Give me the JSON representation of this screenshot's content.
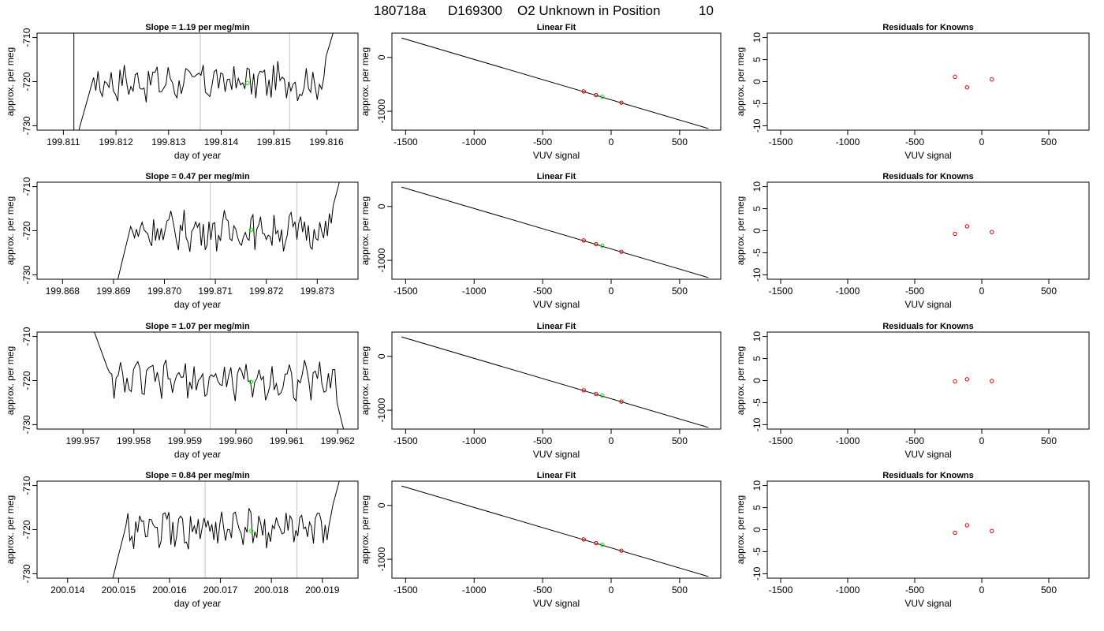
{
  "title": {
    "run_id": "180718a",
    "tank_id": "D169300",
    "description": "O2 Unknown in Position",
    "position": "10"
  },
  "colors": {
    "trace": "#000000",
    "marker_unknown": "#00e000",
    "marker_known": "#e00000",
    "vline": "#cccccc"
  },
  "chart_data": [
    {
      "type": "line",
      "panel": "trace",
      "row": 1,
      "title": "Slope =  1.19  per meg/min",
      "xlabel": "day of year",
      "ylabel": "approx. per meg",
      "xlim": [
        199.8105,
        199.8166
      ],
      "ylim": [
        -731,
        -709
      ],
      "x_ticks": [
        "199.811",
        "199.812",
        "199.813",
        "199.814",
        "199.815",
        "199.816"
      ],
      "y_ticks": [
        "-710",
        "-720",
        "-730"
      ],
      "trace_start": 199.8112,
      "trace_end": 199.8162,
      "vlines": [
        199.8136,
        199.8153
      ],
      "unknown_point": {
        "x": 199.8145,
        "y": -720.3
      }
    },
    {
      "type": "scatter",
      "panel": "fit",
      "row": 1,
      "title": "Linear Fit",
      "xlabel": "VUV signal",
      "ylabel": "approx. per meg",
      "xlim": [
        -1600,
        800
      ],
      "ylim": [
        -1350,
        450
      ],
      "x_ticks": [
        "-1500",
        "-1000",
        "-500",
        "0",
        "500"
      ],
      "y_ticks": [
        "0",
        "-1000"
      ],
      "fit_line": {
        "x": [
          -1530,
          710
        ],
        "y": [
          360,
          -1320
        ]
      },
      "knowns": [
        {
          "x": -200,
          "y": -630
        },
        {
          "x": -110,
          "y": -700
        },
        {
          "x": 75,
          "y": -840
        }
      ],
      "unknown_point": {
        "x": -65,
        "y": -730
      }
    },
    {
      "type": "scatter",
      "panel": "residuals",
      "row": 1,
      "title": "Residuals for Knowns",
      "xlabel": "VUV signal",
      "ylabel": "approx. per meg",
      "xlim": [
        -1600,
        800
      ],
      "ylim": [
        -11,
        11
      ],
      "x_ticks": [
        "-1500",
        "-1000",
        "-500",
        "0",
        "500"
      ],
      "y_ticks": [
        "10",
        "5",
        "0",
        "-5",
        "-10"
      ],
      "residuals": [
        {
          "x": -200,
          "y": 1.1
        },
        {
          "x": -110,
          "y": -1.3
        },
        {
          "x": 75,
          "y": 0.5
        }
      ]
    },
    {
      "type": "line",
      "panel": "trace",
      "row": 2,
      "title": "Slope =  0.47  per meg/min",
      "xlabel": "day of year",
      "ylabel": "approx. per meg",
      "xlim": [
        199.8675,
        199.8738
      ],
      "ylim": [
        -731,
        -709
      ],
      "x_ticks": [
        "199.868",
        "199.869",
        "199.870",
        "199.871",
        "199.872",
        "199.873"
      ],
      "y_ticks": [
        "-710",
        "-720",
        "-730"
      ],
      "trace_start": 199.869,
      "trace_end": 199.8735,
      "vlines": [
        199.8709,
        199.8726
      ],
      "unknown_point": {
        "x": 199.8717,
        "y": -719.8
      }
    },
    {
      "type": "scatter",
      "panel": "fit",
      "row": 2,
      "title": "Linear Fit",
      "xlabel": "VUV signal",
      "ylabel": "approx. per meg",
      "xlim": [
        -1600,
        800
      ],
      "ylim": [
        -1350,
        450
      ],
      "x_ticks": [
        "-1500",
        "-1000",
        "-500",
        "0",
        "500"
      ],
      "y_ticks": [
        "0",
        "-1000"
      ],
      "fit_line": {
        "x": [
          -1530,
          710
        ],
        "y": [
          360,
          -1320
        ]
      },
      "knowns": [
        {
          "x": -200,
          "y": -630
        },
        {
          "x": -110,
          "y": -700
        },
        {
          "x": 75,
          "y": -840
        }
      ],
      "unknown_point": {
        "x": -65,
        "y": -730
      }
    },
    {
      "type": "scatter",
      "panel": "residuals",
      "row": 2,
      "title": "Residuals for Knowns",
      "xlabel": "VUV signal",
      "ylabel": "approx. per meg",
      "xlim": [
        -1600,
        800
      ],
      "ylim": [
        -11,
        11
      ],
      "x_ticks": [
        "-1500",
        "-1000",
        "-500",
        "0",
        "500"
      ],
      "y_ticks": [
        "10",
        "5",
        "0",
        "-5",
        "-10"
      ],
      "residuals": [
        {
          "x": -200,
          "y": -0.7
        },
        {
          "x": -110,
          "y": 1.0
        },
        {
          "x": 75,
          "y": -0.3
        }
      ]
    },
    {
      "type": "line",
      "panel": "trace",
      "row": 3,
      "title": "Slope =  1.07  per meg/min",
      "xlabel": "day of year",
      "ylabel": "approx. per meg",
      "xlim": [
        199.9561,
        199.9624
      ],
      "ylim": [
        -731,
        -709
      ],
      "x_ticks": [
        "199.957",
        "199.958",
        "199.959",
        "199.960",
        "199.961",
        "199.962"
      ],
      "y_ticks": [
        "-710",
        "-720",
        "-730"
      ],
      "trace_start": 199.9571,
      "trace_end": 199.9622,
      "vlines": [
        199.9595,
        199.9612
      ],
      "unknown_point": {
        "x": 199.9603,
        "y": -720.3
      }
    },
    {
      "type": "scatter",
      "panel": "fit",
      "row": 3,
      "title": "Linear Fit",
      "xlabel": "VUV signal",
      "ylabel": "approx. per meg",
      "xlim": [
        -1600,
        800
      ],
      "ylim": [
        -1350,
        450
      ],
      "x_ticks": [
        "-1500",
        "-1000",
        "-500",
        "0",
        "500"
      ],
      "y_ticks": [
        "0",
        "-1000"
      ],
      "fit_line": {
        "x": [
          -1530,
          710
        ],
        "y": [
          360,
          -1320
        ]
      },
      "knowns": [
        {
          "x": -200,
          "y": -630
        },
        {
          "x": -110,
          "y": -700
        },
        {
          "x": 75,
          "y": -840
        }
      ],
      "unknown_point": {
        "x": -65,
        "y": -730
      }
    },
    {
      "type": "scatter",
      "panel": "residuals",
      "row": 3,
      "title": "Residuals for Knowns",
      "xlabel": "VUV signal",
      "ylabel": "approx. per meg",
      "xlim": [
        -1600,
        800
      ],
      "ylim": [
        -11,
        11
      ],
      "x_ticks": [
        "-1500",
        "-1000",
        "-500",
        "0",
        "500"
      ],
      "y_ticks": [
        "10",
        "5",
        "0",
        "-5",
        "-10"
      ],
      "residuals": [
        {
          "x": -200,
          "y": -0.2
        },
        {
          "x": -110,
          "y": 0.3
        },
        {
          "x": 75,
          "y": -0.1
        }
      ]
    },
    {
      "type": "line",
      "panel": "trace",
      "row": 4,
      "title": "Slope =  0.84  per meg/min",
      "xlabel": "day of year",
      "ylabel": "approx. per meg",
      "xlim": [
        200.0134,
        200.0197
      ],
      "ylim": [
        -731,
        -709
      ],
      "x_ticks": [
        "200.014",
        "200.015",
        "200.016",
        "200.017",
        "200.018",
        "200.019"
      ],
      "y_ticks": [
        "-710",
        "-720",
        "-730"
      ],
      "trace_start": 200.0148,
      "trace_end": 200.0194,
      "vlines": [
        200.0167,
        200.0185
      ],
      "unknown_point": {
        "x": 200.0176,
        "y": -720.3
      }
    },
    {
      "type": "scatter",
      "panel": "fit",
      "row": 4,
      "title": "Linear Fit",
      "xlabel": "VUV signal",
      "ylabel": "approx. per meg",
      "xlim": [
        -1600,
        800
      ],
      "ylim": [
        -1350,
        450
      ],
      "x_ticks": [
        "-1500",
        "-1000",
        "-500",
        "0",
        "500"
      ],
      "y_ticks": [
        "0",
        "-1000"
      ],
      "fit_line": {
        "x": [
          -1530,
          710
        ],
        "y": [
          360,
          -1320
        ]
      },
      "knowns": [
        {
          "x": -200,
          "y": -630
        },
        {
          "x": -110,
          "y": -700
        },
        {
          "x": 75,
          "y": -840
        }
      ],
      "unknown_point": {
        "x": -65,
        "y": -730
      }
    },
    {
      "type": "scatter",
      "panel": "residuals",
      "row": 4,
      "title": "Residuals for Knowns",
      "xlabel": "VUV signal",
      "ylabel": "approx. per meg",
      "xlim": [
        -1600,
        800
      ],
      "ylim": [
        -11,
        11
      ],
      "x_ticks": [
        "-1500",
        "-1000",
        "-500",
        "0",
        "500"
      ],
      "y_ticks": [
        "10",
        "5",
        "0",
        "-5",
        "-10"
      ],
      "residuals": [
        {
          "x": -200,
          "y": -0.7
        },
        {
          "x": -110,
          "y": 1.0
        },
        {
          "x": 75,
          "y": -0.3
        }
      ]
    }
  ]
}
